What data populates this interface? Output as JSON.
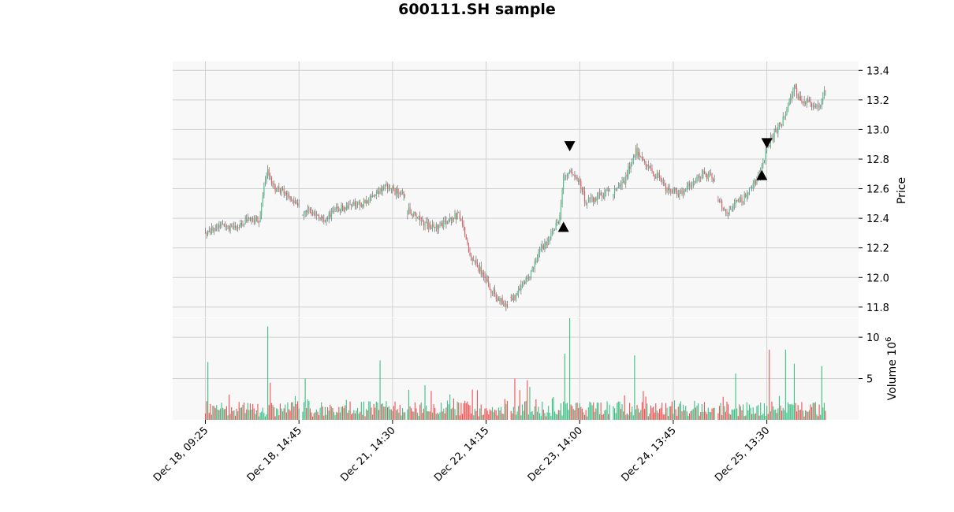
{
  "chart_data": {
    "type": "candlestick",
    "title": "600111.SH sample",
    "price_panel": {
      "ylabel": "Price",
      "ylim": [
        11.73,
        13.46
      ],
      "yticks": [
        "11.8",
        "12.0",
        "12.2",
        "12.4",
        "12.6",
        "12.8",
        "13.0",
        "13.2",
        "13.4"
      ],
      "ytick_values": [
        11.8,
        12.0,
        12.2,
        12.4,
        12.6,
        12.8,
        13.0,
        13.2,
        13.4
      ],
      "up_color": "#3dbf85",
      "down_color": "#ef5353",
      "segments": [
        {
          "points": [
            [
              0,
              12.28
            ],
            [
              5,
              12.33
            ],
            [
              12,
              12.35
            ],
            [
              20,
              12.33
            ],
            [
              30,
              12.37
            ],
            [
              38,
              12.4
            ],
            [
              43,
              12.38
            ],
            [
              47,
              12.62
            ],
            [
              50,
              12.72
            ],
            [
              55,
              12.6
            ],
            [
              62,
              12.58
            ],
            [
              70,
              12.52
            ],
            [
              75,
              12.5
            ]
          ]
        },
        {
          "points": [
            [
              78,
              12.42
            ],
            [
              82,
              12.48
            ],
            [
              90,
              12.4
            ],
            [
              95,
              12.38
            ],
            [
              105,
              12.46
            ],
            [
              115,
              12.48
            ],
            [
              125,
              12.5
            ],
            [
              135,
              12.54
            ],
            [
              140,
              12.6
            ],
            [
              145,
              12.63
            ],
            [
              152,
              12.58
            ],
            [
              160,
              12.56
            ]
          ]
        },
        {
          "points": [
            [
              162,
              12.46
            ],
            [
              170,
              12.4
            ],
            [
              178,
              12.35
            ],
            [
              188,
              12.34
            ],
            [
              196,
              12.4
            ],
            [
              203,
              12.42
            ],
            [
              208,
              12.3
            ],
            [
              212,
              12.15
            ],
            [
              220,
              12.05
            ],
            [
              228,
              11.92
            ],
            [
              236,
              11.85
            ],
            [
              242,
              11.82
            ]
          ]
        },
        {
          "points": [
            [
              245,
              11.84
            ],
            [
              252,
              11.92
            ],
            [
              262,
              12.05
            ],
            [
              270,
              12.2
            ],
            [
              278,
              12.3
            ],
            [
              284,
              12.4
            ],
            [
              287,
              12.68
            ],
            [
              292,
              12.72
            ],
            [
              300,
              12.65
            ],
            [
              305,
              12.5
            ],
            [
              315,
              12.55
            ],
            [
              324,
              12.58
            ]
          ]
        },
        {
          "points": [
            [
              327,
              12.58
            ],
            [
              335,
              12.63
            ],
            [
              342,
              12.8
            ],
            [
              345,
              12.86
            ],
            [
              352,
              12.76
            ],
            [
              360,
              12.7
            ],
            [
              370,
              12.6
            ],
            [
              380,
              12.57
            ],
            [
              388,
              12.62
            ],
            [
              398,
              12.7
            ],
            [
              405,
              12.68
            ],
            [
              408,
              12.66
            ]
          ]
        },
        {
          "points": [
            [
              411,
              12.52
            ],
            [
              418,
              12.43
            ],
            [
              425,
              12.5
            ],
            [
              432,
              12.54
            ],
            [
              438,
              12.62
            ],
            [
              444,
              12.68
            ],
            [
              450,
              12.88
            ],
            [
              456,
              12.98
            ],
            [
              462,
              13.05
            ],
            [
              468,
              13.18
            ],
            [
              472,
              13.28
            ],
            [
              476,
              13.2
            ],
            [
              482,
              13.18
            ],
            [
              490,
              13.15
            ],
            [
              494,
              13.18
            ],
            [
              497,
              13.27
            ]
          ]
        }
      ],
      "markers": [
        {
          "type": "buy",
          "bar": 287,
          "price": 12.34
        },
        {
          "type": "sell",
          "bar": 292,
          "price": 12.89
        },
        {
          "type": "buy",
          "bar": 446,
          "price": 12.69
        },
        {
          "type": "sell",
          "bar": 450,
          "price": 12.91
        }
      ]
    },
    "volume_panel": {
      "ylabel": "Volume",
      "exponent": "6",
      "ylim": [
        0,
        12.3
      ],
      "yticks": [
        "5",
        "10"
      ],
      "ytick_values": [
        5,
        10
      ],
      "spikes": [
        {
          "bar": 2,
          "value": 7.0
        },
        {
          "bar": 50,
          "value": 11.3
        },
        {
          "bar": 52,
          "value": 4.5
        },
        {
          "bar": 80,
          "value": 5.0
        },
        {
          "bar": 140,
          "value": 7.2
        },
        {
          "bar": 176,
          "value": 4.2
        },
        {
          "bar": 248,
          "value": 5.0
        },
        {
          "bar": 258,
          "value": 4.8
        },
        {
          "bar": 288,
          "value": 8.0
        },
        {
          "bar": 292,
          "value": 12.3
        },
        {
          "bar": 344,
          "value": 7.8
        },
        {
          "bar": 425,
          "value": 5.6
        },
        {
          "bar": 452,
          "value": 8.5
        },
        {
          "bar": 465,
          "value": 8.5
        },
        {
          "bar": 472,
          "value": 6.8
        },
        {
          "bar": 494,
          "value": 6.5
        }
      ]
    },
    "xtick_labels": [
      "Dec 18, 09:25",
      "Dec 18, 14:45",
      "Dec 21, 14:30",
      "Dec 22, 14:15",
      "Dec 23, 14:00",
      "Dec 24, 13:45",
      "Dec 25, 13:30"
    ],
    "xtick_bars": [
      0,
      75,
      150,
      225,
      300,
      375,
      450
    ],
    "n_bars": 498,
    "grid": true
  }
}
